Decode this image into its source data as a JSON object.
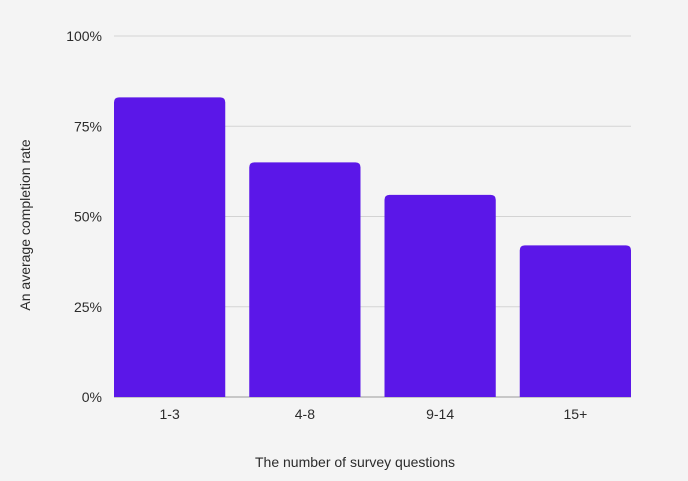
{
  "chart_data": {
    "type": "bar",
    "categories": [
      "1-3",
      "4-8",
      "9-14",
      "15+"
    ],
    "values": [
      83,
      65,
      56,
      42
    ],
    "xlabel": "The number of survey questions",
    "ylabel": "An average completion rate",
    "ylim": [
      0,
      100
    ],
    "yticks": [
      0,
      25,
      50,
      75,
      100
    ],
    "ytick_labels": [
      "0%",
      "25%",
      "50%",
      "75%",
      "100%"
    ],
    "grid": true,
    "legend": "none",
    "colors": {
      "bar": "#5b17e8",
      "background": "#f4f4f4",
      "grid": "#d3d3d3",
      "text": "#2b2b2b"
    }
  }
}
